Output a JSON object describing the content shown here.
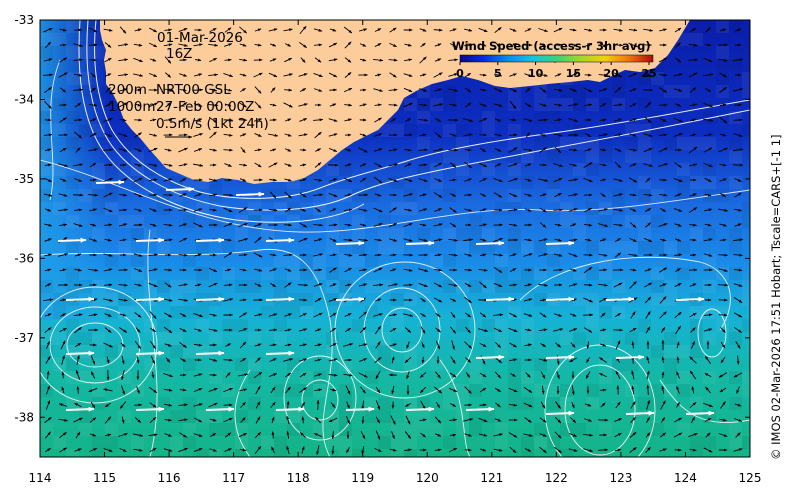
{
  "annotations": {
    "date": "01-Mar-2026",
    "hour": "16Z",
    "depth_shallow": "200m",
    "depth_deep": "1000m",
    "product": "NRT00 GSL",
    "product_time": "27-Feb 00:00Z",
    "scale": "0.5m/s (1kt 24h)"
  },
  "colorbar": {
    "title": "Wind Speed (access-r 3hr avg)",
    "ticks": [
      "0",
      "5",
      "10",
      "15",
      "20",
      "25"
    ],
    "range": [
      0,
      25
    ]
  },
  "credit": "© IMOS 02-Mar-2026 17:51 Hobart; Tscale=CARS+[-1 1]",
  "axes": {
    "x_ticks": [
      "114",
      "115",
      "116",
      "117",
      "118",
      "119",
      "120",
      "121",
      "122",
      "123",
      "124",
      "125"
    ],
    "y_ticks": [
      "-33",
      "-34",
      "-35",
      "-36",
      "-37",
      "-38"
    ],
    "x_range": [
      114,
      125
    ],
    "y_range": [
      -38.5,
      -33
    ]
  },
  "colors": {
    "land": "#fccc9a",
    "deep_blue": "#0a1eaa",
    "mid_blue": "#1a7ee8",
    "cyan": "#16b4d8",
    "green": "#14b890",
    "arrow_black": "#000000",
    "arrow_white": "#ffffff",
    "contour": "#ffffff"
  }
}
